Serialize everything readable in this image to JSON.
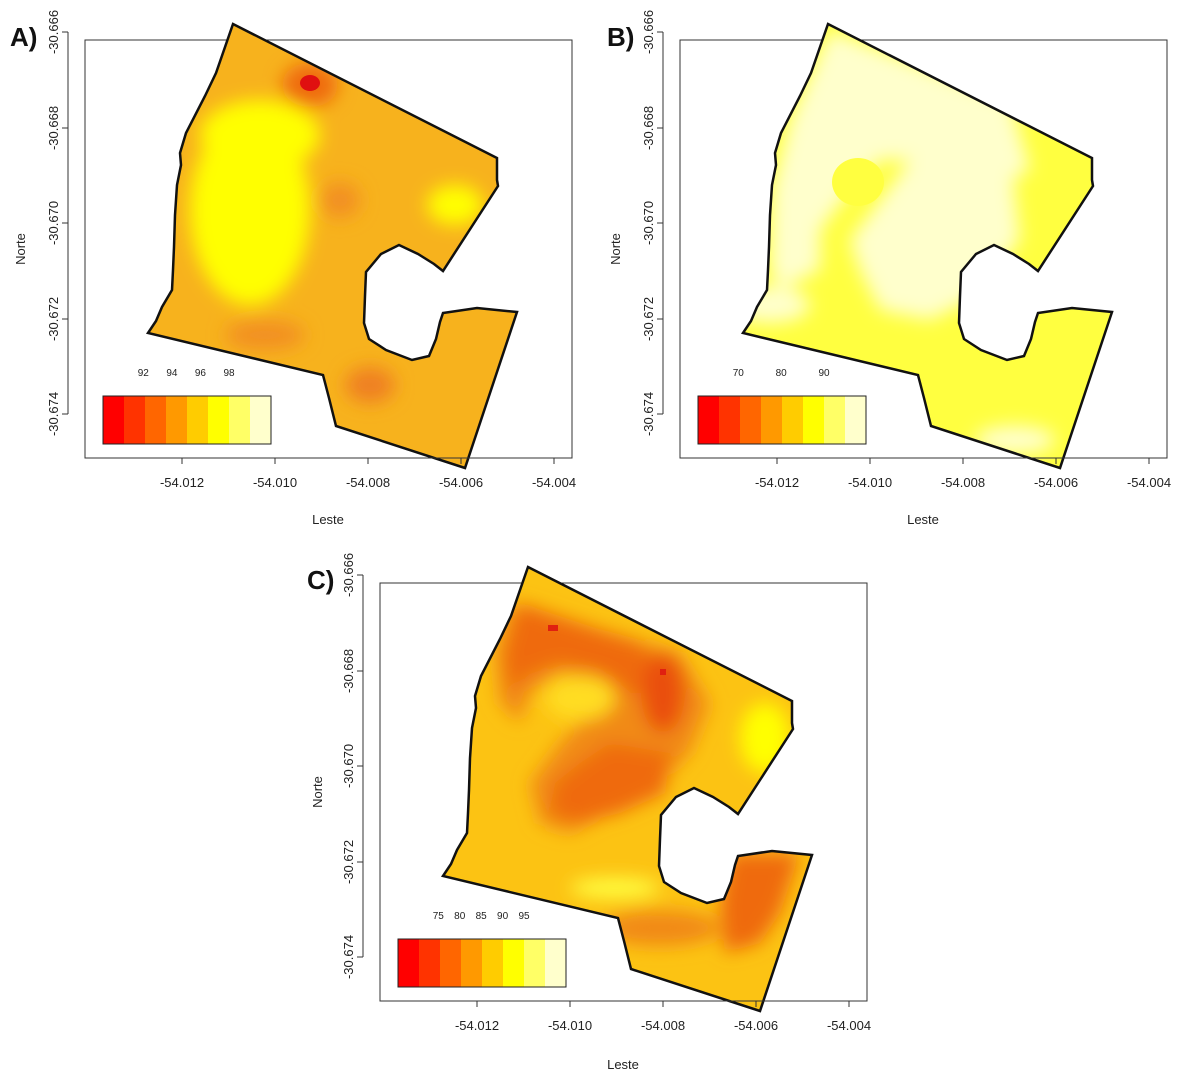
{
  "panels": [
    {
      "id": "A",
      "label": "A)",
      "xlabel": "Leste",
      "ylabel": "Norte",
      "x_ticks": [
        "-54.012",
        "-54.010",
        "-54.008",
        "-54.006",
        "-54.004"
      ],
      "y_ticks": [
        "-30.666",
        "-30.668",
        "-30.670",
        "-30.672",
        "-30.674"
      ],
      "legend_labels": [
        "92",
        "94",
        "96",
        "98"
      ],
      "legend_colors": [
        "#ff0000",
        "#ff3300",
        "#ff6600",
        "#ff9900",
        "#ffcc00",
        "#ffff00",
        "#ffff66",
        "#ffffcc"
      ],
      "field_colors": {
        "base": "#f7b21d",
        "hi": "#ffff00",
        "lo": "#ef6a10"
      }
    },
    {
      "id": "B",
      "label": "B)",
      "xlabel": "Leste",
      "ylabel": "Norte",
      "x_ticks": [
        "-54.012",
        "-54.010",
        "-54.008",
        "-54.006",
        "-54.004"
      ],
      "y_ticks": [
        "-30.666",
        "-30.668",
        "-30.670",
        "-30.672",
        "-30.674"
      ],
      "legend_labels": [
        "70",
        "80",
        "90"
      ],
      "legend_colors": [
        "#ff0000",
        "#ff3300",
        "#ff6600",
        "#ff9900",
        "#ffcc00",
        "#ffff00",
        "#ffff66",
        "#ffffcc"
      ],
      "field_colors": {
        "base": "#ffff40",
        "hi": "#ffffcc",
        "lo": "#ffff40"
      }
    },
    {
      "id": "C",
      "label": "C)",
      "xlabel": "Leste",
      "ylabel": "Norte",
      "x_ticks": [
        "-54.012",
        "-54.010",
        "-54.008",
        "-54.006",
        "-54.004"
      ],
      "y_ticks": [
        "-30.666",
        "-30.668",
        "-30.670",
        "-30.672",
        "-30.674"
      ],
      "legend_labels": [
        "75",
        "80",
        "85",
        "90",
        "95"
      ],
      "legend_colors": [
        "#ff0000",
        "#ff3300",
        "#ff6600",
        "#ff9900",
        "#ffcc00",
        "#ffff00",
        "#ffff66",
        "#ffffcc"
      ],
      "field_colors": {
        "base": "#fcc313",
        "hi": "#ffff00",
        "lo": "#f06410"
      }
    }
  ]
}
